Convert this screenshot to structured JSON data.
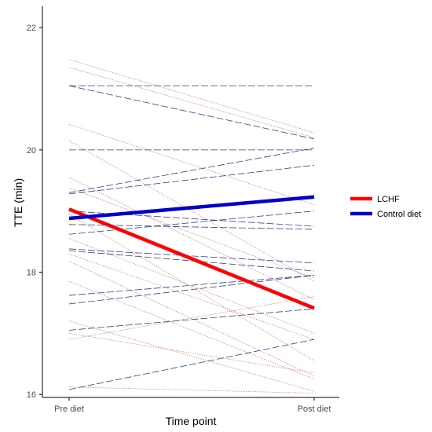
{
  "chart_data": {
    "type": "line",
    "title": "",
    "xlabel": "Time point",
    "ylabel": "TTE (min)",
    "categories": [
      "Pre diet",
      "Post diet"
    ],
    "ylim": [
      15.95,
      22.35
    ],
    "yticks": [
      16,
      18,
      20,
      22
    ],
    "ytick_labels": [
      "16",
      "18",
      "20",
      "22"
    ],
    "grid": false,
    "legend_position": "right",
    "series": [
      {
        "name": "LCHF",
        "values": [
          19.03,
          17.41
        ],
        "color": "#ff0000",
        "style": "solid",
        "role": "mean"
      },
      {
        "name": "Control diet",
        "values": [
          18.88,
          19.23
        ],
        "color": "#0000cc",
        "style": "solid",
        "role": "mean"
      }
    ],
    "individual_lines": [
      {
        "group": "LCHF",
        "values": [
          21.48,
          20.28
        ],
        "color": "#c0504d"
      },
      {
        "group": "LCHF",
        "values": [
          21.35,
          20.2
        ],
        "color": "#c0504d"
      },
      {
        "group": "LCHF",
        "values": [
          20.42,
          19.1
        ],
        "color": "#c0504d"
      },
      {
        "group": "LCHF",
        "values": [
          20.15,
          17.85
        ],
        "color": "#c0504d"
      },
      {
        "group": "LCHF",
        "values": [
          19.55,
          17.55
        ],
        "color": "#c0504d"
      },
      {
        "group": "LCHF",
        "values": [
          19.38,
          17.9
        ],
        "color": "#c0504d"
      },
      {
        "group": "LCHF",
        "values": [
          18.95,
          16.55
        ],
        "color": "#c0504d"
      },
      {
        "group": "LCHF",
        "values": [
          18.55,
          17.0
        ],
        "color": "#c0504d"
      },
      {
        "group": "LCHF",
        "values": [
          18.3,
          16.9
        ],
        "color": "#c0504d"
      },
      {
        "group": "LCHF",
        "values": [
          18.18,
          16.3
        ],
        "color": "#c0504d"
      },
      {
        "group": "LCHF",
        "values": [
          17.85,
          16.25
        ],
        "color": "#c0504d"
      },
      {
        "group": "LCHF",
        "values": [
          17.2,
          16.05
        ],
        "color": "#c0504d"
      },
      {
        "group": "LCHF",
        "values": [
          17.0,
          16.35
        ],
        "color": "#c0504d"
      },
      {
        "group": "LCHF",
        "values": [
          16.9,
          17.6
        ],
        "color": "#c0504d"
      },
      {
        "group": "LCHF",
        "values": [
          16.12,
          16.02
        ],
        "color": "#c0504d"
      },
      {
        "group": "Control diet",
        "values": [
          21.05,
          21.05
        ],
        "color": "#1f2a7a"
      },
      {
        "group": "Control diet",
        "values": [
          21.05,
          20.18
        ],
        "color": "#1f2a7a"
      },
      {
        "group": "Control diet",
        "values": [
          20.0,
          20.0
        ],
        "color": "#1f2a7a"
      },
      {
        "group": "Control diet",
        "values": [
          19.3,
          20.03
        ],
        "color": "#1f2a7a"
      },
      {
        "group": "Control diet",
        "values": [
          19.28,
          19.75
        ],
        "color": "#1f2a7a"
      },
      {
        "group": "Control diet",
        "values": [
          19.0,
          18.75
        ],
        "color": "#1f2a7a"
      },
      {
        "group": "Control diet",
        "values": [
          18.78,
          18.7
        ],
        "color": "#1f2a7a"
      },
      {
        "group": "Control diet",
        "values": [
          18.62,
          19.0
        ],
        "color": "#1f2a7a"
      },
      {
        "group": "Control diet",
        "values": [
          18.38,
          18.15
        ],
        "color": "#1f2a7a"
      },
      {
        "group": "Control diet",
        "values": [
          18.35,
          18.02
        ],
        "color": "#1f2a7a"
      },
      {
        "group": "Control diet",
        "values": [
          17.62,
          17.95
        ],
        "color": "#1f2a7a"
      },
      {
        "group": "Control diet",
        "values": [
          17.48,
          17.95
        ],
        "color": "#1f2a7a"
      },
      {
        "group": "Control diet",
        "values": [
          17.05,
          17.4
        ],
        "color": "#1f2a7a"
      },
      {
        "group": "Control diet",
        "values": [
          16.08,
          16.9
        ],
        "color": "#1f2a7a"
      }
    ]
  }
}
